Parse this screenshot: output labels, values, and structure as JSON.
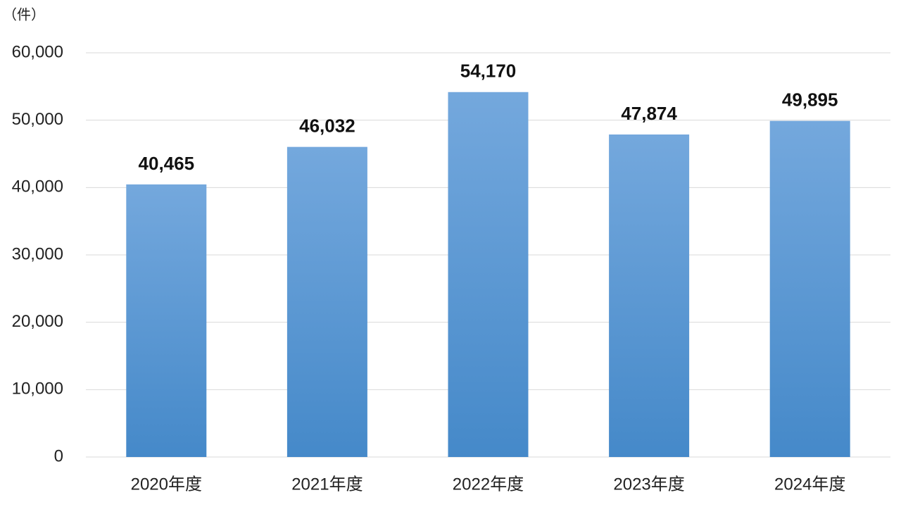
{
  "chart_data": {
    "type": "bar",
    "y_label": "（件）",
    "categories": [
      "2020年度",
      "2021年度",
      "2022年度",
      "2023年度",
      "2024年度"
    ],
    "values": [
      40465,
      46032,
      54170,
      47874,
      49895
    ],
    "value_labels": [
      "40,465",
      "46,032",
      "54,170",
      "47,874",
      "49,895"
    ],
    "gradient": [
      "#74a8dd",
      "#4589c9"
    ],
    "ylim": [
      0,
      60000
    ],
    "yticks": [
      0,
      {
        "value": 10000,
        "label": "10,000"
      },
      {
        "value": 20000,
        "label": "20,000"
      },
      {
        "value": 30000,
        "label": "30,000"
      },
      {
        "value": 40000,
        "label": "40,000"
      },
      {
        "value": 50000,
        "label": "50,000"
      },
      {
        "value": 60000,
        "label": "60,000"
      }
    ],
    "grid": true
  }
}
